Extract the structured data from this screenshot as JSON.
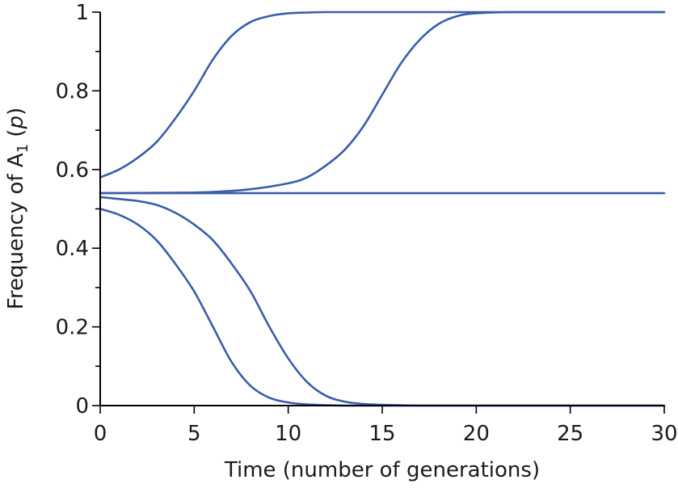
{
  "chart_data": {
    "type": "line",
    "xlabel": "Time (number of generations)",
    "ylabel": {
      "main": "Frequency of A",
      "subscript": "1",
      "paren_open": " (",
      "italic": "p",
      "paren_close": ")"
    },
    "xlim": [
      0,
      30
    ],
    "ylim": [
      0,
      1
    ],
    "x_ticks": [
      0,
      5,
      10,
      15,
      20,
      25,
      30
    ],
    "x_tick_labels": [
      "0",
      "5",
      "10",
      "15",
      "20",
      "25",
      "30"
    ],
    "y_ticks": [
      0,
      0.2,
      0.4,
      0.6,
      0.8,
      1
    ],
    "y_tick_labels": [
      "0",
      "0.2",
      "0.4",
      "0.6",
      "0.8",
      "1"
    ],
    "y_minor_ticks": [
      0.1,
      0.3,
      0.5,
      0.7,
      0.9
    ],
    "grid": false,
    "line_color": "#3a5dab",
    "series": [
      {
        "x": [
          0,
          1,
          2,
          3,
          4,
          5,
          6,
          7,
          8,
          9,
          10,
          11,
          12,
          14,
          16,
          18,
          20,
          25,
          30
        ],
        "values": [
          0.58,
          0.6,
          0.63,
          0.67,
          0.73,
          0.8,
          0.88,
          0.94,
          0.975,
          0.99,
          0.997,
          0.999,
          1,
          1,
          1,
          1,
          1,
          1,
          1
        ]
      },
      {
        "x": [
          0,
          4,
          6,
          8,
          10,
          11,
          12,
          13,
          14,
          15,
          16,
          17,
          18,
          19,
          20,
          22,
          25,
          30
        ],
        "values": [
          0.54,
          0.541,
          0.543,
          0.55,
          0.565,
          0.58,
          0.61,
          0.65,
          0.71,
          0.79,
          0.87,
          0.93,
          0.97,
          0.99,
          0.997,
          1,
          1,
          1
        ]
      },
      {
        "x": [
          0,
          30
        ],
        "values": [
          0.54,
          0.54
        ]
      },
      {
        "x": [
          0,
          1,
          2,
          3,
          4,
          5,
          6,
          7,
          8,
          9,
          10,
          11,
          12,
          13,
          14,
          15,
          17,
          20,
          25,
          30
        ],
        "values": [
          0.53,
          0.525,
          0.52,
          0.51,
          0.49,
          0.46,
          0.42,
          0.36,
          0.29,
          0.2,
          0.12,
          0.06,
          0.025,
          0.01,
          0.004,
          0.002,
          0,
          0,
          0,
          0
        ]
      },
      {
        "x": [
          0,
          1,
          2,
          3,
          4,
          5,
          6,
          7,
          8,
          9,
          10,
          11,
          12,
          13,
          15,
          20,
          25,
          30
        ],
        "values": [
          0.5,
          0.485,
          0.46,
          0.42,
          0.36,
          0.29,
          0.2,
          0.11,
          0.05,
          0.02,
          0.008,
          0.003,
          0.001,
          0,
          0,
          0,
          0,
          0
        ]
      }
    ]
  }
}
